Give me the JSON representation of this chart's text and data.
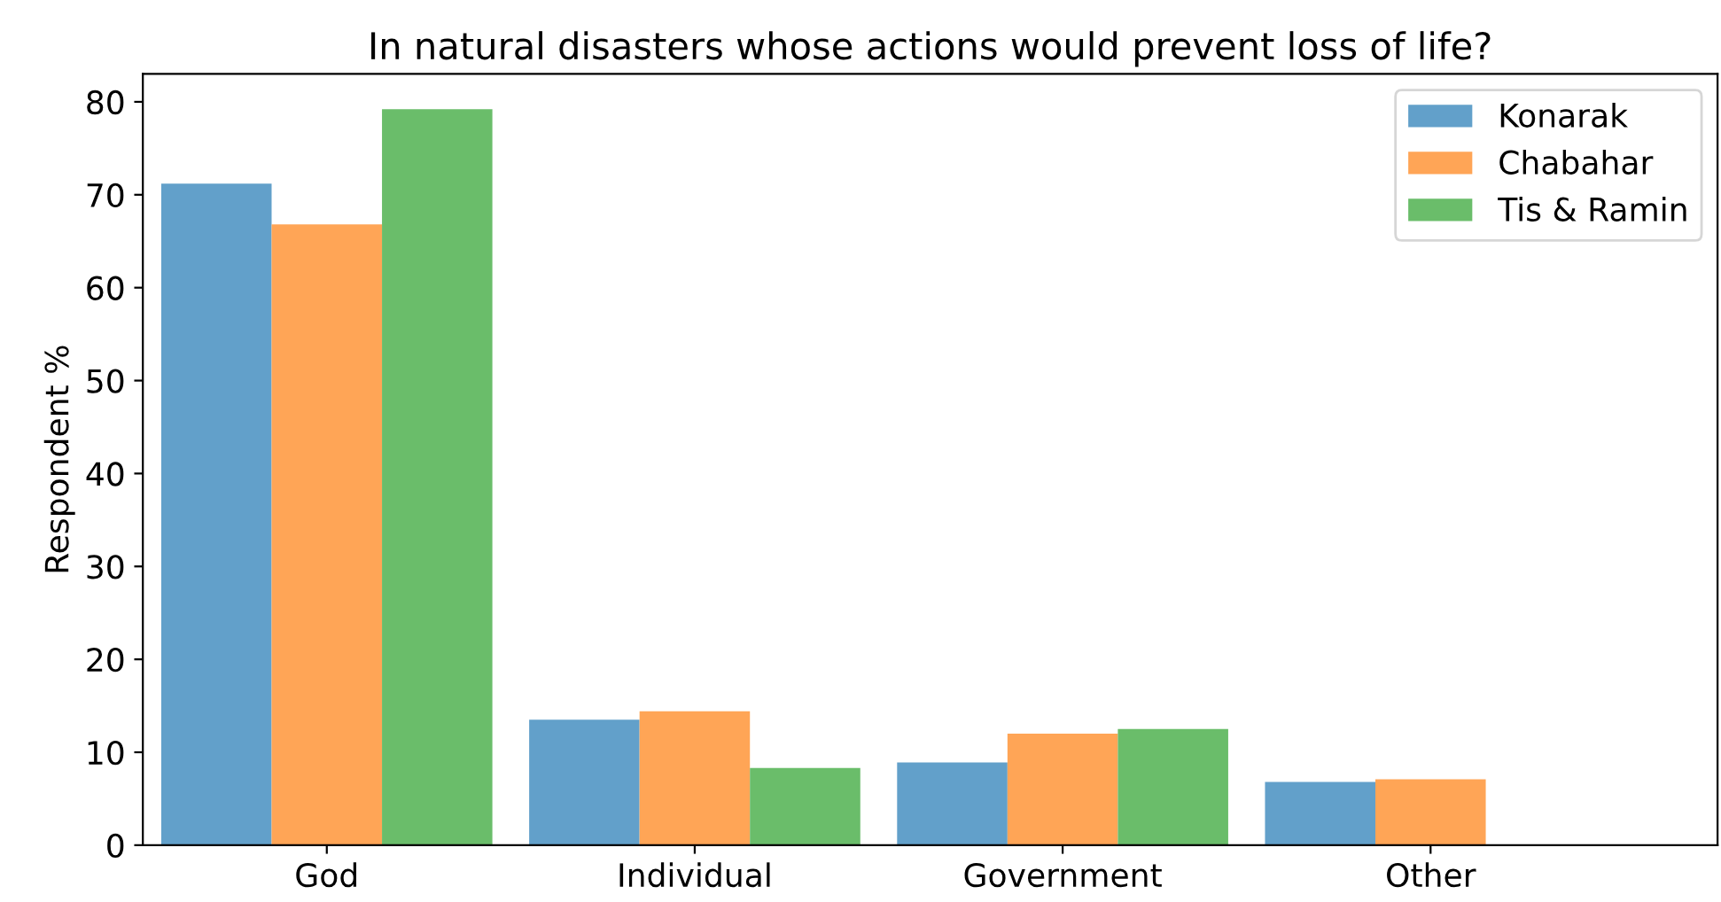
{
  "chart_data": {
    "type": "bar",
    "title": "In natural disasters whose actions would prevent loss of life?",
    "ylabel": "Respondent %",
    "categories": [
      "God",
      "Individual",
      "Government",
      "Other"
    ],
    "series": [
      {
        "name": "Konarak",
        "color": "#62a0ca",
        "values": [
          71.2,
          13.5,
          8.9,
          6.8
        ]
      },
      {
        "name": "Chabahar",
        "color": "#ffa556",
        "values": [
          66.8,
          14.4,
          12.0,
          7.1
        ]
      },
      {
        "name": "Tis & Ramin",
        "color": "#6abd6a",
        "values": [
          79.2,
          8.3,
          12.5,
          null
        ]
      }
    ],
    "ylim": [
      0,
      83
    ],
    "yticks": [
      0,
      10,
      20,
      30,
      40,
      50,
      60,
      70,
      80
    ],
    "grid": false,
    "legend": "top right"
  }
}
